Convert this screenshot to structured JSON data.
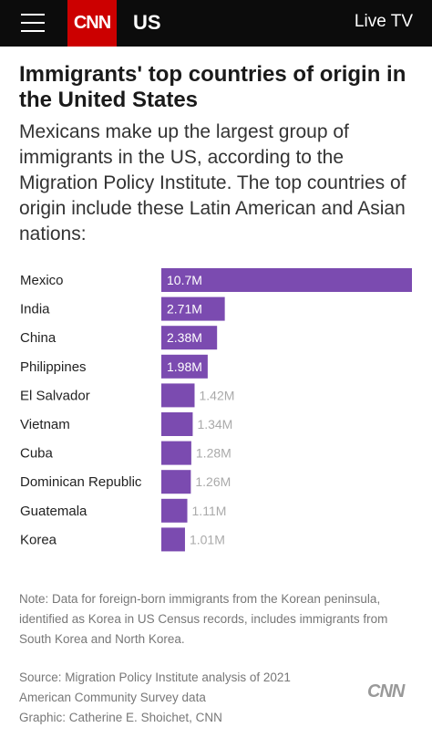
{
  "header": {
    "brand": "CNN",
    "edition": "US",
    "live_tv": "Live TV"
  },
  "article": {
    "title": "Immigrants' top countries of origin in the United States",
    "subtitle": "Mexicans make up the largest group of immigrants in the US, according to the Migration Policy Institute. The top countries of origin include these Latin American and Asian nations:",
    "note": "Note: Data for foreign-born immigrants from the Korean peninsula, identified as Korea in US Census records, includes immigrants from South Korea and North Korea.",
    "source_lines": [
      "Source: Migration Policy Institute analysis of 2021",
      "American Community Survey data",
      "Graphic: Catherine E. Shoichet, CNN"
    ],
    "footer_logo": "CNN"
  },
  "colors": {
    "bar": "#7b4bb0",
    "topbar": "#0c0c0c",
    "brand_red": "#cc0000",
    "label_inside": "#ffffff",
    "label_outside": "#aaaaaa"
  },
  "chart_data": {
    "type": "bar",
    "orientation": "horizontal",
    "categories": [
      "Mexico",
      "India",
      "China",
      "Philippines",
      "El Salvador",
      "Vietnam",
      "Cuba",
      "Dominican Republic",
      "Guatemala",
      "Korea"
    ],
    "values": [
      10.7,
      2.71,
      2.38,
      1.98,
      1.42,
      1.34,
      1.28,
      1.26,
      1.11,
      1.01
    ],
    "value_labels": [
      "10.7M",
      "2.71M",
      "2.38M",
      "1.98M",
      "1.42M",
      "1.34M",
      "1.28M",
      "1.26M",
      "1.11M",
      "1.01M"
    ],
    "unit": "M",
    "xlim": [
      0,
      10.7
    ],
    "grid": false,
    "legend": "none"
  }
}
